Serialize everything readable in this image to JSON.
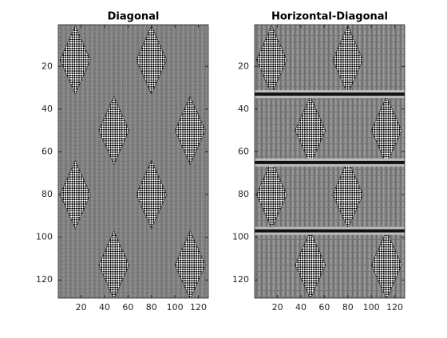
{
  "chart_data": [
    {
      "type": "image",
      "title": "Diagonal",
      "colormap": "gray",
      "x": [
        15,
        80,
        48,
        113,
        15,
        80,
        48,
        113
      ],
      "y": [
        17,
        17,
        50,
        50,
        80,
        80,
        113,
        113
      ],
      "xlim": [
        0.5,
        128.5
      ],
      "ylim": [
        0.5,
        128.5
      ],
      "xticks": [
        20,
        40,
        60,
        80,
        100,
        120
      ],
      "yticks": [
        20,
        40,
        60,
        80,
        100,
        120
      ]
    },
    {
      "type": "image",
      "title": "Horizontal-Diagonal",
      "colormap": "gray",
      "x": [
        15,
        80,
        48,
        113,
        15,
        80,
        48,
        113
      ],
      "y": [
        17,
        17,
        50,
        50,
        80,
        80,
        113,
        113
      ],
      "bands": [
        33,
        65,
        97
      ],
      "xlim": [
        0.5,
        128.5
      ],
      "ylim": [
        0.5,
        128.5
      ],
      "xticks": [
        20,
        40,
        60,
        80,
        100,
        120
      ],
      "yticks": [
        20,
        40,
        60,
        80,
        100,
        120
      ]
    }
  ]
}
